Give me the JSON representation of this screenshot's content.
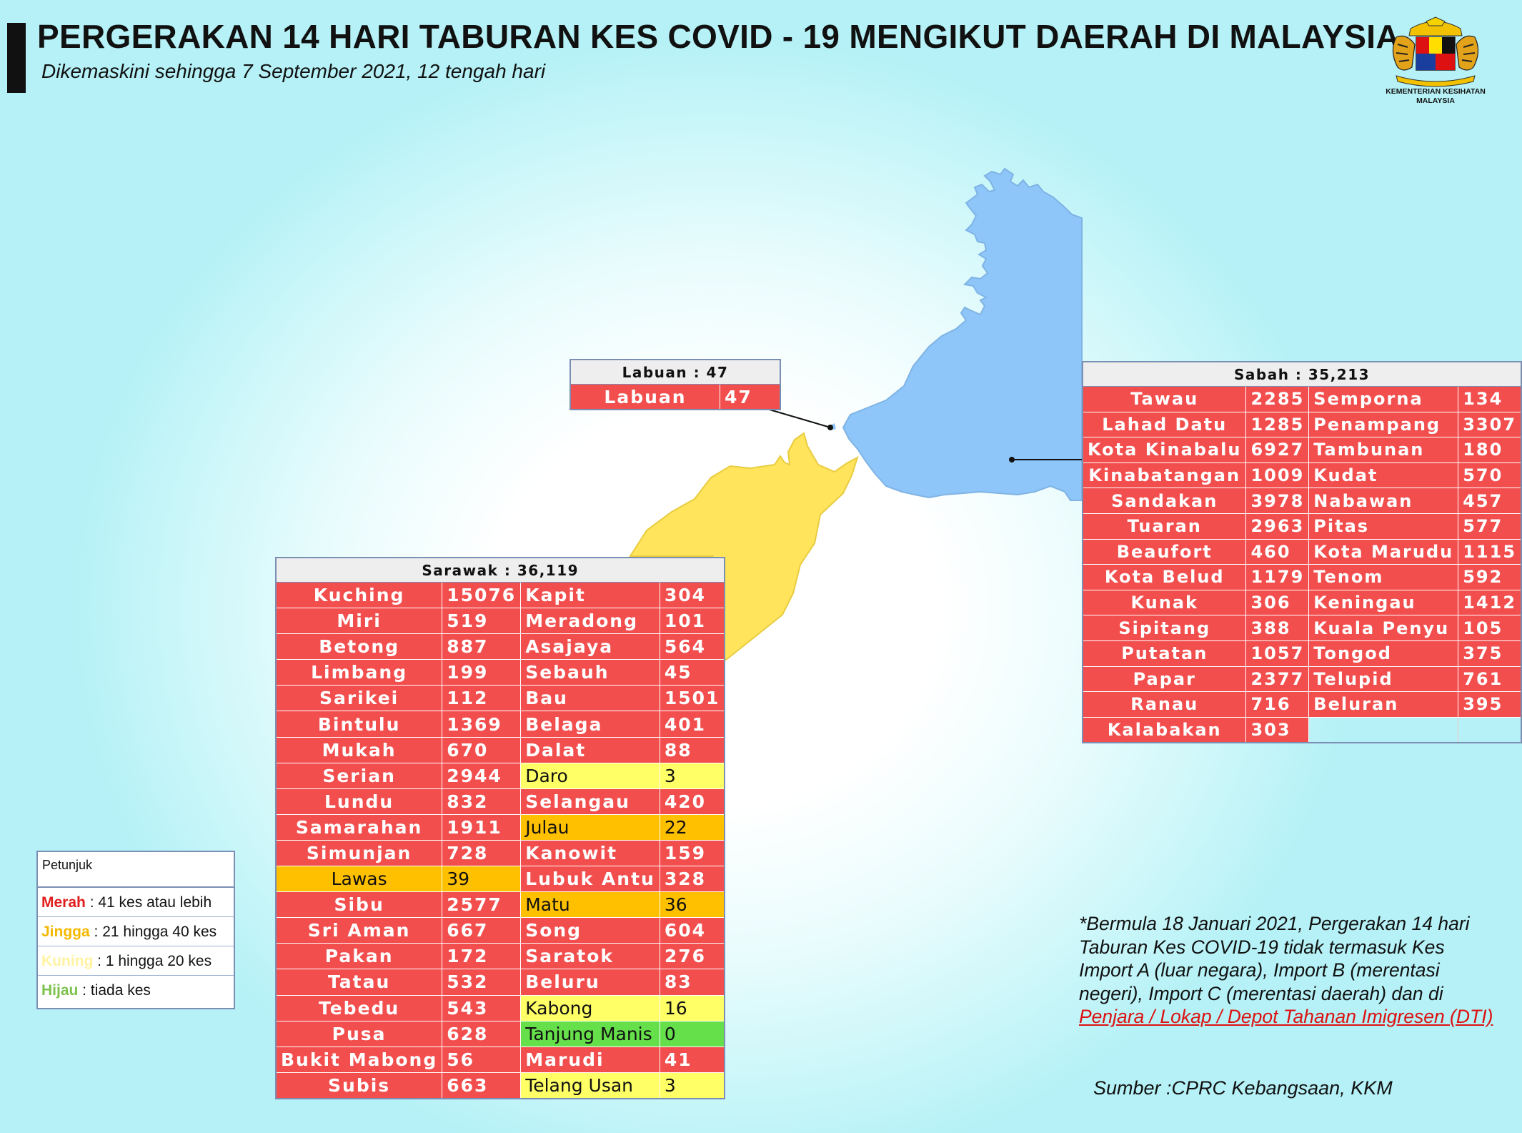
{
  "header": {
    "title": "PERGERAKAN 14 HARI TABURAN KES COVID - 19 MENGIKUT DAERAH DI MALAYSIA",
    "subtitle": "Dikemaskini sehingga 7 September 2021, 12 tengah hari"
  },
  "logo": {
    "ministry_line1": "KEMENTERIAN KESIHATAN",
    "ministry_line2": "MALAYSIA"
  },
  "colors": {
    "red": "#f24e4e",
    "orange": "#ffc000",
    "yellow": "#ffff66",
    "green": "#66e04a",
    "sabah_map": "#8ec6f9",
    "sarawak_map": "#ffe45c"
  },
  "labuan": {
    "header": "Labuan : 47",
    "rows": [
      {
        "name": "Labuan",
        "value": "47",
        "level": "r"
      }
    ]
  },
  "sabah": {
    "header": "Sabah : 35,213",
    "rows": [
      {
        "a": "Tawau",
        "av": "2285",
        "b": "Semporna",
        "bv": "134"
      },
      {
        "a": "Lahad Datu",
        "av": "1285",
        "b": "Penampang",
        "bv": "3307"
      },
      {
        "a": "Kota Kinabalu",
        "av": "6927",
        "b": "Tambunan",
        "bv": "180"
      },
      {
        "a": "Kinabatangan",
        "av": "1009",
        "b": "Kudat",
        "bv": "570"
      },
      {
        "a": "Sandakan",
        "av": "3978",
        "b": "Nabawan",
        "bv": "457"
      },
      {
        "a": "Tuaran",
        "av": "2963",
        "b": "Pitas",
        "bv": "577"
      },
      {
        "a": "Beaufort",
        "av": "460",
        "b": "Kota Marudu",
        "bv": "1115"
      },
      {
        "a": "Kota Belud",
        "av": "1179",
        "b": "Tenom",
        "bv": "592"
      },
      {
        "a": "Kunak",
        "av": "306",
        "b": "Keningau",
        "bv": "1412"
      },
      {
        "a": "Sipitang",
        "av": "388",
        "b": "Kuala Penyu",
        "bv": "105"
      },
      {
        "a": "Putatan",
        "av": "1057",
        "b": "Tongod",
        "bv": "375"
      },
      {
        "a": "Papar",
        "av": "2377",
        "b": "Telupid",
        "bv": "761"
      },
      {
        "a": "Ranau",
        "av": "716",
        "b": "Beluran",
        "bv": "395"
      },
      {
        "a": "Kalabakan",
        "av": "303",
        "b": "",
        "bv": ""
      }
    ]
  },
  "sarawak": {
    "header": "Sarawak : 36,119",
    "rows": [
      {
        "a": "Kuching",
        "av": "15076",
        "al": "r",
        "b": "Kapit",
        "bv": "304",
        "bl": "r"
      },
      {
        "a": "Miri",
        "av": "519",
        "al": "r",
        "b": "Meradong",
        "bv": "101",
        "bl": "r"
      },
      {
        "a": "Betong",
        "av": "887",
        "al": "r",
        "b": "Asajaya",
        "bv": "564",
        "bl": "r"
      },
      {
        "a": "Limbang",
        "av": "199",
        "al": "r",
        "b": "Sebauh",
        "bv": "45",
        "bl": "r"
      },
      {
        "a": "Sarikei",
        "av": "112",
        "al": "r",
        "b": "Bau",
        "bv": "1501",
        "bl": "r"
      },
      {
        "a": "Bintulu",
        "av": "1369",
        "al": "r",
        "b": "Belaga",
        "bv": "401",
        "bl": "r"
      },
      {
        "a": "Mukah",
        "av": "670",
        "al": "r",
        "b": "Dalat",
        "bv": "88",
        "bl": "r"
      },
      {
        "a": "Serian",
        "av": "2944",
        "al": "r",
        "b": "Daro",
        "bv": "3",
        "bl": "y"
      },
      {
        "a": "Lundu",
        "av": "832",
        "al": "r",
        "b": "Selangau",
        "bv": "420",
        "bl": "r"
      },
      {
        "a": "Samarahan",
        "av": "1911",
        "al": "r",
        "b": "Julau",
        "bv": "22",
        "bl": "o"
      },
      {
        "a": "Simunjan",
        "av": "728",
        "al": "r",
        "b": "Kanowit",
        "bv": "159",
        "bl": "r"
      },
      {
        "a": "Lawas",
        "av": "39",
        "al": "o",
        "b": "Lubuk Antu",
        "bv": "328",
        "bl": "r"
      },
      {
        "a": "Sibu",
        "av": "2577",
        "al": "r",
        "b": "Matu",
        "bv": "36",
        "bl": "o"
      },
      {
        "a": "Sri Aman",
        "av": "667",
        "al": "r",
        "b": "Song",
        "bv": "604",
        "bl": "r"
      },
      {
        "a": "Pakan",
        "av": "172",
        "al": "r",
        "b": "Saratok",
        "bv": "276",
        "bl": "r"
      },
      {
        "a": "Tatau",
        "av": "532",
        "al": "r",
        "b": "Beluru",
        "bv": "83",
        "bl": "r"
      },
      {
        "a": "Tebedu",
        "av": "543",
        "al": "r",
        "b": "Kabong",
        "bv": "16",
        "bl": "y"
      },
      {
        "a": "Pusa",
        "av": "628",
        "al": "r",
        "b": "Tanjung Manis",
        "bv": "0",
        "bl": "g"
      },
      {
        "a": "Bukit Mabong",
        "av": "56",
        "al": "r",
        "b": "Marudi",
        "bv": "41",
        "bl": "r"
      },
      {
        "a": "Subis",
        "av": "663",
        "al": "r",
        "b": "Telang Usan",
        "bv": "3",
        "bl": "y"
      }
    ]
  },
  "legend": {
    "title": "Petunjuk",
    "items": [
      {
        "key": "Merah",
        "desc": " : 41 kes atau lebih",
        "cls": "k-merah"
      },
      {
        "key": "Jingga",
        "desc": " : 21 hingga 40 kes",
        "cls": "k-jingga"
      },
      {
        "key": "Kuning",
        "desc": " : 1 hingga 20 kes",
        "cls": "k-kuning"
      },
      {
        "key": "Hijau",
        "desc": " : tiada kes",
        "cls": "k-hijau"
      }
    ]
  },
  "note": {
    "text": "*Bermula 18 Januari 2021, Pergerakan 14 hari Taburan Kes COVID-19 tidak termasuk Kes Import A (luar negara), Import B (merentasi negeri), Import C (merentasi daerah) dan di ",
    "link": "Penjara / Lokap / Depot Tahanan Imigresen (DTI)"
  },
  "source": "Sumber :CPRC Kebangsaan,  KKM"
}
